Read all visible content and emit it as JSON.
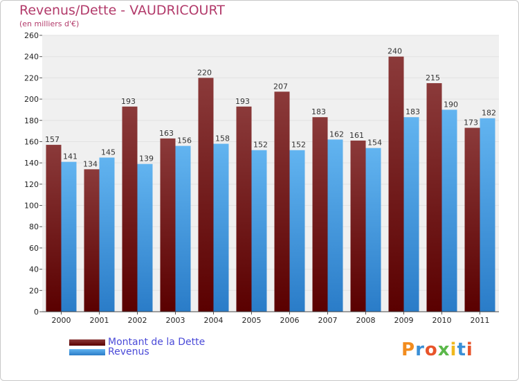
{
  "header": {
    "title": "Revenus/Dette - VAUDRICOURT",
    "subtitle": "(en milliers d'€)"
  },
  "colors": {
    "debt_top": "#8b3a3a",
    "debt_bottom": "#5a0000",
    "revenue_top": "#62b4f0",
    "revenue_bottom": "#2a7cc8",
    "grid": "#e2e2e2",
    "plot_bg": "#f0f0f0",
    "title": "#b23a6a"
  },
  "legend": {
    "debt_label": "Montant de la Dette",
    "revenue_label": "Revenus"
  },
  "logo": {
    "text": "Proxiti"
  },
  "chart_data": {
    "type": "bar",
    "title": "Revenus/Dette - VAUDRICOURT",
    "subtitle": "(en milliers d'€)",
    "xlabel": "",
    "ylabel": "",
    "ylim": [
      0,
      260
    ],
    "yticks": [
      0,
      20,
      40,
      60,
      80,
      100,
      120,
      140,
      160,
      180,
      200,
      220,
      240,
      260
    ],
    "grid": true,
    "categories": [
      "2000",
      "2001",
      "2002",
      "2003",
      "2004",
      "2005",
      "2006",
      "2007",
      "2008",
      "2009",
      "2010",
      "2011"
    ],
    "series": [
      {
        "name": "Montant de la Dette",
        "values": [
          157,
          134,
          193,
          163,
          220,
          193,
          207,
          183,
          161,
          240,
          215,
          173
        ]
      },
      {
        "name": "Revenus",
        "values": [
          141,
          145,
          139,
          156,
          158,
          152,
          152,
          162,
          154,
          183,
          190,
          182
        ]
      }
    ],
    "legend_position": "bottom-left"
  }
}
